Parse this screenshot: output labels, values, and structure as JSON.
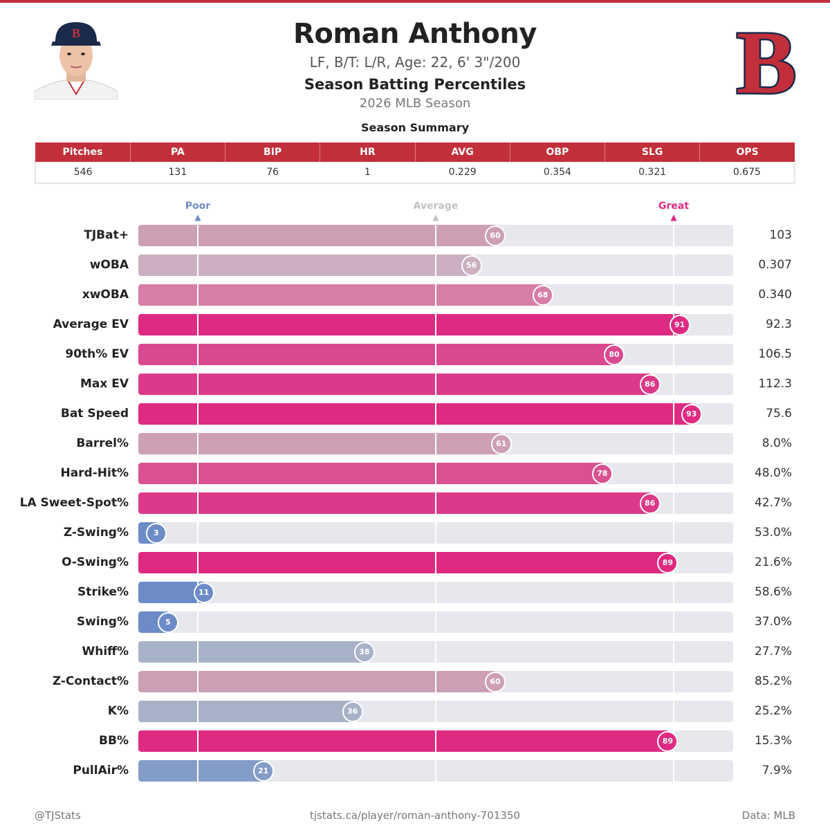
{
  "header": {
    "name": "Roman Anthony",
    "bio": "LF, B/T: L/R, Age: 22, 6' 3\"/200",
    "subtitle": "Season Batting Percentiles",
    "season": "2026 MLB Season",
    "logo_letter": "B",
    "team_color": "#c22f3a",
    "team_navy": "#1b2a4a"
  },
  "summary": {
    "title": "Season Summary",
    "headers": [
      "Pitches",
      "PA",
      "BIP",
      "HR",
      "AVG",
      "OBP",
      "SLG",
      "OPS"
    ],
    "values": [
      "546",
      "131",
      "76",
      "1",
      "0.229",
      "0.354",
      "0.321",
      "0.675"
    ]
  },
  "markers": {
    "poor": "Poor",
    "average": "Average",
    "great": "Great",
    "poor_color": "#6f8dc4",
    "average_color": "#c2c2c2",
    "great_color": "#df2a81"
  },
  "chart_data": {
    "type": "bar",
    "orientation": "horizontal",
    "xlim": [
      0,
      100
    ],
    "reference_lines": [
      10,
      50,
      90
    ],
    "categories": [
      "TJBat+",
      "wOBA",
      "xwOBA",
      "Average EV",
      "90th% EV",
      "Max EV",
      "Bat Speed",
      "Barrel%",
      "Hard-Hit%",
      "LA Sweet-Spot%",
      "Z-Swing%",
      "O-Swing%",
      "Strike%",
      "Swing%",
      "Whiff%",
      "Z-Contact%",
      "K%",
      "BB%",
      "PullAir%"
    ],
    "percentiles": [
      60,
      56,
      68,
      91,
      80,
      86,
      93,
      61,
      78,
      86,
      3,
      89,
      11,
      5,
      38,
      60,
      36,
      89,
      21
    ],
    "stat_values": [
      "103",
      "0.307",
      "0.340",
      "92.3",
      "106.5",
      "112.3",
      "75.6",
      "8.0%",
      "48.0%",
      "42.7%",
      "53.0%",
      "21.6%",
      "58.6%",
      "37.0%",
      "27.7%",
      "85.2%",
      "25.2%",
      "15.3%",
      "7.9%"
    ],
    "colors": [
      "#cd9fb5",
      "#cab0c0",
      "#d67ea5",
      "#df2a81",
      "#d9498f",
      "#db3a88",
      "#df2a81",
      "#cd9fb5",
      "#d9528f",
      "#db3a88",
      "#6c8bc7",
      "#df2a81",
      "#6c8bc7",
      "#6c8bc7",
      "#a8b2c7",
      "#cd9fb5",
      "#a8b2c7",
      "#df2a81",
      "#849dc8"
    ]
  },
  "footer": {
    "left": "@TJStats",
    "center": "tjstats.ca/player/roman-anthony-701350",
    "right": "Data: MLB"
  }
}
